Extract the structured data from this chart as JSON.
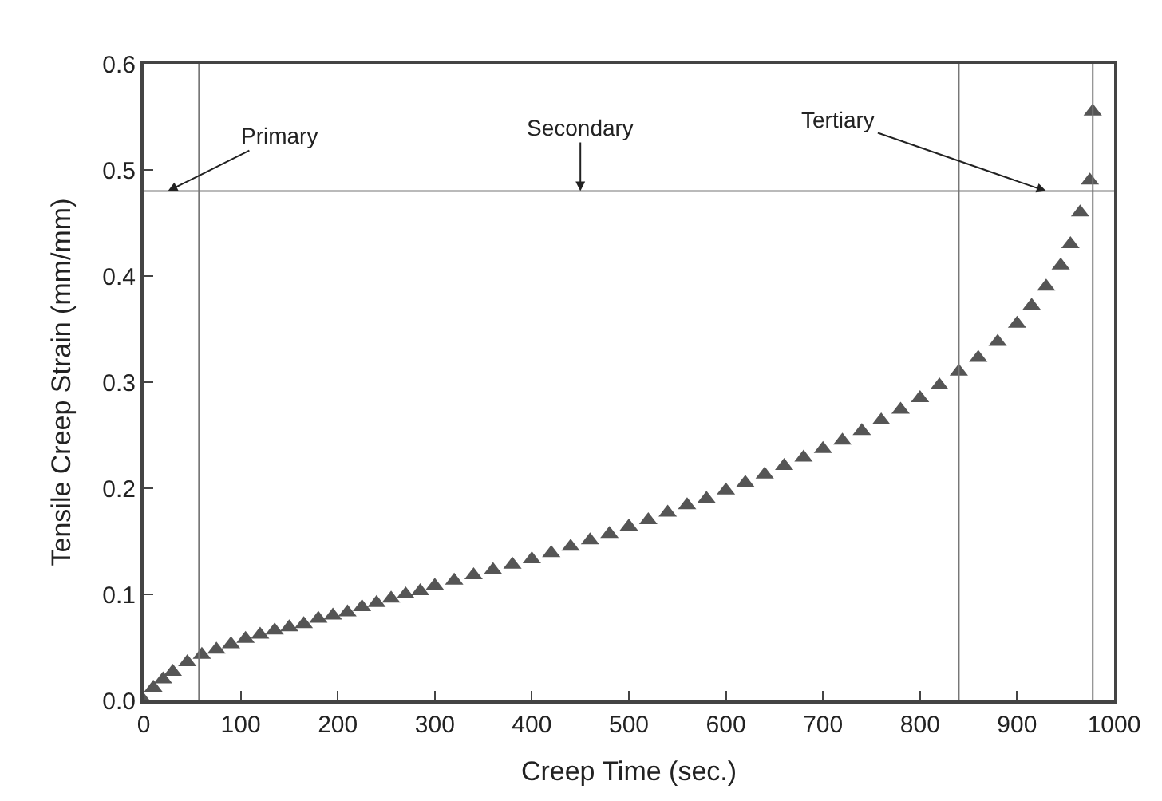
{
  "chart_data": {
    "type": "scatter",
    "xlabel": "Creep Time (sec.)",
    "ylabel": "Tensile Creep Strain (mm/mm)",
    "xlim": [
      0,
      1000
    ],
    "xticks": [
      0,
      100,
      200,
      300,
      400,
      500,
      600,
      700,
      800,
      900,
      1000
    ],
    "ylim": [
      0,
      0.6
    ],
    "yticks": [
      {
        "value": 0,
        "label": "0.0"
      },
      0.1,
      0.2,
      0.3,
      0.4,
      0.5,
      0.6
    ],
    "marker": "triangle",
    "series": [
      {
        "color": "#555555",
        "x": [
          0,
          10,
          20,
          30,
          45,
          60,
          75,
          90,
          105,
          120,
          135,
          150,
          165,
          180,
          195,
          210,
          225,
          240,
          255,
          270,
          285,
          300,
          320,
          340,
          360,
          380,
          400,
          420,
          440,
          460,
          480,
          500,
          520,
          540,
          560,
          580,
          600,
          620,
          640,
          660,
          680,
          700,
          720,
          740,
          760,
          780,
          800,
          820,
          840,
          860,
          880,
          900,
          915,
          930,
          945,
          955,
          965,
          975
        ],
        "values": [
          0,
          0.012,
          0.02,
          0.027,
          0.036,
          0.043,
          0.048,
          0.053,
          0.058,
          0.062,
          0.066,
          0.069,
          0.072,
          0.077,
          0.08,
          0.083,
          0.088,
          0.092,
          0.096,
          0.1,
          0.103,
          0.108,
          0.113,
          0.118,
          0.123,
          0.128,
          0.133,
          0.139,
          0.145,
          0.151,
          0.157,
          0.164,
          0.17,
          0.177,
          0.184,
          0.19,
          0.198,
          0.205,
          0.213,
          0.221,
          0.229,
          0.237,
          0.245,
          0.254,
          0.264,
          0.274,
          0.285,
          0.297,
          0.31,
          0.323,
          0.338,
          0.355,
          0.372,
          0.39,
          0.41,
          0.43,
          0.46,
          0.49
        ]
      },
      {
        "color": "#555555",
        "x": [
          978
        ],
        "values": [
          0.555
        ]
      }
    ],
    "ref_lines": [
      {
        "axis": "x",
        "value": 57,
        "color": "#777777"
      },
      {
        "axis": "x",
        "value": 840,
        "color": "#777777"
      },
      {
        "axis": "x",
        "value": 978,
        "color": "#777777"
      },
      {
        "axis": "y",
        "value": 0.48,
        "color": "#777777"
      }
    ],
    "annotations": [
      {
        "text": "Primary",
        "x": 25,
        "y": 0.48
      },
      {
        "text": "Secondary",
        "x": 450,
        "y": 0.48
      },
      {
        "text": "Tertiary",
        "x": 930,
        "y": 0.48
      }
    ]
  }
}
